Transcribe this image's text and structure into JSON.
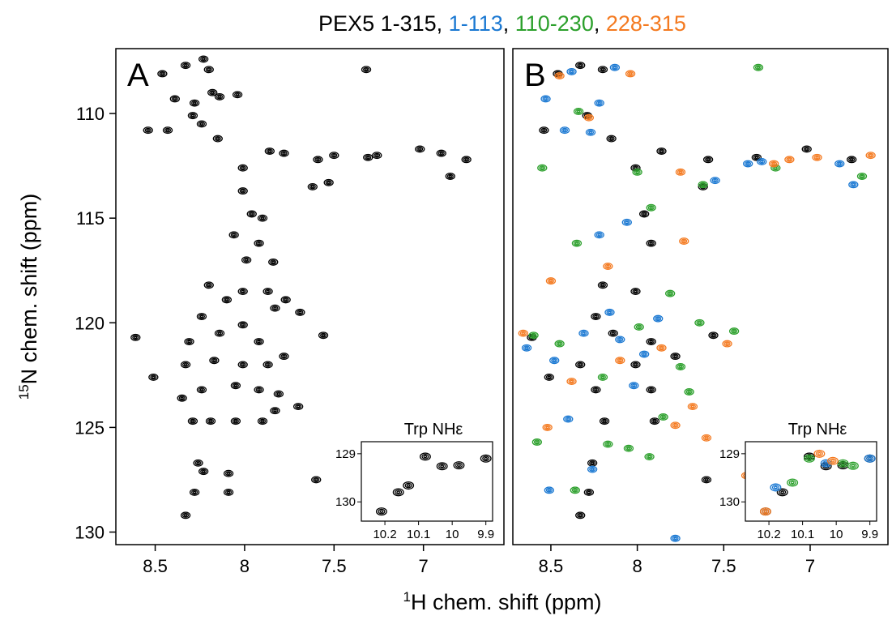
{
  "title_separator": ", ",
  "x_label_sup": "1",
  "x_label": "H chem. shift (ppm)",
  "y_label_sup": "15",
  "y_label": "N chem. shift (ppm)",
  "chart_data": [
    {
      "type": "contour",
      "label": "A",
      "xlim": [
        8.72,
        6.55
      ],
      "ylim": [
        106.9,
        130.6
      ],
      "xticks": [
        8.5,
        8,
        7.5,
        7
      ],
      "yticks": [
        110,
        115,
        120,
        125,
        130
      ],
      "series": [
        {
          "color": "#000000",
          "x": [
            8.46,
            8.33,
            8.23,
            8.2,
            8.39,
            8.28,
            8.18,
            8.14,
            8.04,
            8.54,
            8.43,
            8.29,
            8.24,
            8.15,
            8.01,
            7.86,
            7.78,
            7.59,
            7.5,
            7.31,
            7.26,
            7.02,
            6.9,
            6.76,
            6.85,
            7.62,
            7.53,
            8.01,
            7.96,
            7.9,
            7.92,
            7.99,
            7.84,
            8.06,
            8.2,
            8.1,
            8.01,
            7.87,
            8.24,
            8.14,
            8.01,
            7.92,
            7.83,
            7.77,
            7.69,
            8.31,
            8.33,
            8.17,
            8.01,
            7.87,
            7.78,
            8.35,
            8.24,
            8.05,
            7.92,
            7.81,
            7.7,
            8.51,
            8.29,
            8.19,
            8.05,
            7.9,
            7.83,
            8.61,
            7.56,
            8.26,
            8.23,
            8.09,
            8.28,
            8.09,
            8.33,
            7.6,
            7.32
          ],
          "y": [
            108.1,
            107.7,
            107.4,
            107.9,
            109.3,
            109.5,
            109.0,
            109.2,
            109.1,
            110.8,
            110.8,
            110.1,
            110.5,
            111.2,
            112.6,
            111.8,
            111.9,
            112.2,
            112.0,
            112.1,
            112.0,
            111.7,
            111.9,
            112.2,
            113.0,
            113.5,
            113.3,
            113.7,
            114.8,
            115.0,
            116.2,
            117.0,
            117.1,
            115.8,
            118.2,
            118.9,
            118.5,
            118.5,
            119.7,
            120.5,
            120.1,
            120.9,
            119.3,
            118.9,
            119.5,
            120.9,
            122.0,
            121.8,
            122.0,
            122.0,
            121.6,
            123.6,
            123.2,
            123.0,
            123.2,
            123.4,
            124.0,
            122.6,
            124.7,
            124.7,
            124.7,
            124.7,
            124.2,
            120.7,
            120.6,
            126.7,
            127.1,
            127.2,
            128.1,
            128.1,
            129.2,
            127.5,
            107.9
          ]
        }
      ],
      "inset": {
        "title": "Trp NHε",
        "xlim": [
          10.27,
          9.88
        ],
        "ylim": [
          128.75,
          130.4
        ],
        "xticks": [
          10.2,
          10.1,
          10,
          9.9
        ],
        "yticks": [
          129,
          130
        ],
        "series": [
          {
            "x": [
              10.21,
              10.16,
              10.13,
              10.08,
              10.03,
              9.98,
              9.9
            ],
            "y": [
              130.2,
              129.8,
              129.66,
              129.06,
              129.26,
              129.24,
              129.1
            ]
          }
        ]
      }
    },
    {
      "type": "contour",
      "label": "B",
      "xlim": [
        8.72,
        6.55
      ],
      "ylim": [
        106.9,
        130.6
      ],
      "xticks": [
        8.5,
        8,
        7.5,
        7
      ],
      "series": [
        {
          "name": "PEX5 1-315",
          "color": "#000000",
          "x": [
            8.46,
            8.33,
            8.2,
            8.54,
            8.29,
            8.15,
            8.01,
            7.86,
            7.59,
            7.31,
            7.02,
            6.76,
            7.62,
            7.96,
            7.92,
            8.2,
            8.01,
            8.24,
            8.14,
            7.92,
            8.33,
            8.01,
            7.78,
            8.24,
            7.92,
            8.51,
            8.19,
            7.9,
            8.61,
            7.56,
            8.26,
            8.28,
            8.33,
            7.6
          ],
          "y": [
            108.1,
            107.7,
            107.9,
            110.8,
            110.1,
            111.2,
            112.6,
            111.8,
            112.2,
            112.1,
            111.7,
            112.2,
            113.5,
            114.8,
            116.2,
            118.2,
            118.5,
            119.7,
            120.5,
            120.9,
            122.0,
            122.0,
            121.6,
            123.2,
            123.2,
            122.6,
            124.7,
            124.7,
            120.7,
            120.6,
            126.7,
            128.1,
            129.2,
            127.5
          ]
        },
        {
          "name": "1-113",
          "color": "#1a78d2",
          "x": [
            8.53,
            8.38,
            8.22,
            8.13,
            8.42,
            8.27,
            7.55,
            7.36,
            7.28,
            6.83,
            6.75,
            8.06,
            8.22,
            8.48,
            8.64,
            8.31,
            8.1,
            7.96,
            8.02,
            8.4,
            8.26,
            8.51,
            7.78,
            8.16,
            7.88
          ],
          "y": [
            109.3,
            108.0,
            109.5,
            107.8,
            110.8,
            110.9,
            113.2,
            112.4,
            112.3,
            112.4,
            113.4,
            115.2,
            115.8,
            121.8,
            121.2,
            120.5,
            120.8,
            121.5,
            123.0,
            124.6,
            127.0,
            128.0,
            130.3,
            119.5,
            119.8
          ]
        },
        {
          "name": "110-230",
          "color": "#2ca02c",
          "x": [
            8.34,
            7.3,
            8.55,
            8.0,
            7.62,
            7.2,
            6.7,
            8.35,
            7.92,
            7.81,
            8.6,
            8.45,
            7.75,
            7.7,
            7.85,
            7.93,
            8.05,
            8.36,
            8.17,
            7.99,
            8.2,
            7.64,
            8.58,
            7.44
          ],
          "y": [
            109.9,
            107.8,
            112.6,
            112.8,
            113.4,
            112.6,
            113.0,
            116.2,
            114.5,
            118.6,
            120.6,
            121.0,
            122.1,
            123.3,
            124.5,
            126.4,
            126.0,
            128.0,
            125.8,
            120.2,
            122.6,
            120.0,
            125.7,
            120.4
          ]
        },
        {
          "name": "228-315",
          "color": "#f47a20",
          "x": [
            8.45,
            8.04,
            8.28,
            7.21,
            7.12,
            6.96,
            6.65,
            7.75,
            8.17,
            7.73,
            8.5,
            8.66,
            7.48,
            7.68,
            7.6,
            7.37,
            8.52,
            8.1,
            7.86,
            8.38,
            7.78
          ],
          "y": [
            108.2,
            108.1,
            110.2,
            112.4,
            112.2,
            112.1,
            112.0,
            112.8,
            117.3,
            116.1,
            118.0,
            120.5,
            121.0,
            124.0,
            125.5,
            127.3,
            125.0,
            121.8,
            121.2,
            122.8,
            124.9
          ]
        }
      ],
      "inset": {
        "title": "Trp NHε",
        "xlim": [
          10.27,
          9.88
        ],
        "ylim": [
          128.75,
          130.4
        ],
        "xticks": [
          10.2,
          10.1,
          10,
          9.9
        ],
        "yticks": [
          129,
          130
        ],
        "series": [
          {
            "x": [
              10.21,
              10.16,
              10.08,
              10.03,
              9.98,
              9.9
            ],
            "y": [
              130.2,
              129.8,
              129.06,
              129.26,
              129.24,
              129.1
            ]
          },
          {
            "x": [
              10.18,
              10.03,
              9.9
            ],
            "y": [
              129.7,
              129.2,
              129.1
            ]
          },
          {
            "x": [
              10.13,
              10.08,
              9.98,
              9.95
            ],
            "y": [
              129.6,
              129.1,
              129.2,
              129.25
            ]
          },
          {
            "x": [
              10.21,
              10.05,
              10.01
            ],
            "y": [
              130.2,
              129.0,
              129.15
            ]
          }
        ]
      }
    }
  ]
}
